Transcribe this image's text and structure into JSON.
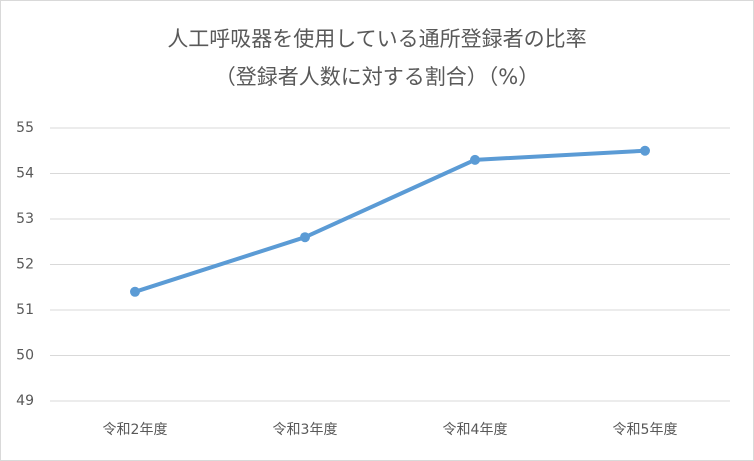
{
  "chart_data": {
    "type": "line",
    "title": "人工呼吸器を使用している通所登録者の比率",
    "subtitle": "（登録者人数に対する割合）（%）",
    "categories": [
      "令和2年度",
      "令和3年度",
      "令和4年度",
      "令和5年度"
    ],
    "series": [
      {
        "color": "#5b9bd5",
        "values": [
          51.4,
          52.6,
          54.3,
          54.5
        ]
      }
    ],
    "ylim": [
      49,
      55
    ],
    "yticks": [
      49,
      50,
      51,
      52,
      53,
      54,
      55
    ],
    "grid": true
  }
}
